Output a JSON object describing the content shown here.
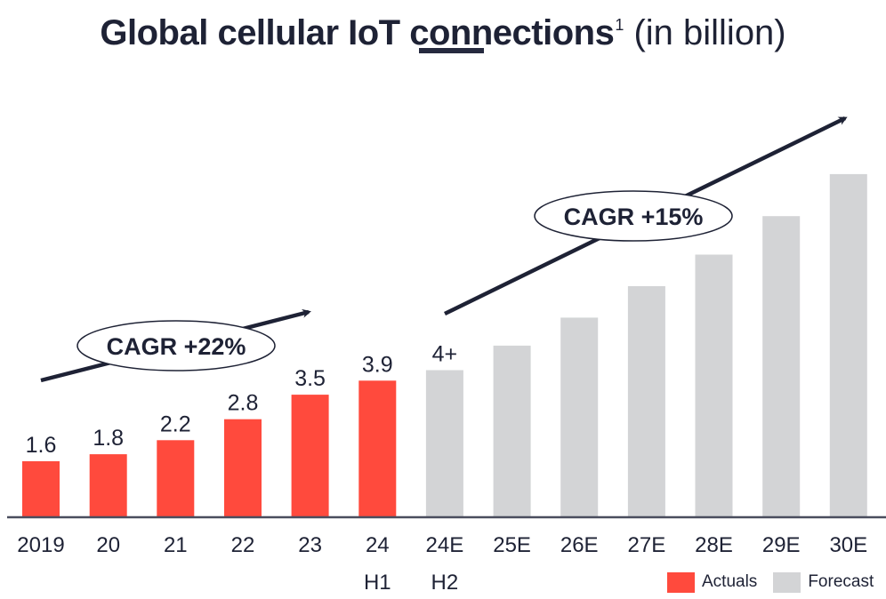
{
  "title": {
    "bold": "Global cellular IoT connections",
    "footnote": "1",
    "light": "(in billion)"
  },
  "colors": {
    "actual": "#ff4a3d",
    "forecast": "#d3d4d6",
    "text": "#1e2235",
    "axis": "#4a4d5e"
  },
  "legend": [
    {
      "label": "Actuals",
      "color": "#ff4a3d"
    },
    {
      "label": "Forecast",
      "color": "#d3d4d6"
    }
  ],
  "annotations": [
    {
      "label": "CAGR +22%",
      "period": "2019 to 24 H1"
    },
    {
      "label": "CAGR +15%",
      "period": "24E H2 to 30E"
    }
  ],
  "chart_data": {
    "type": "bar",
    "title": "Global cellular IoT connections (in billion)",
    "xlabel": "",
    "ylabel": "",
    "ylim": [
      0,
      10.5
    ],
    "grid": false,
    "legend_position": "bottom-right",
    "categories": [
      "2019",
      "20",
      "21",
      "22",
      "23",
      "24",
      "24E",
      "25E",
      "26E",
      "27E",
      "28E",
      "29E",
      "30E"
    ],
    "sublabels": [
      "",
      "",
      "",
      "",
      "",
      "H1",
      "H2",
      "",
      "",
      "",
      "",
      "",
      ""
    ],
    "series": [
      {
        "name": "Actuals",
        "values": [
          1.6,
          1.8,
          2.2,
          2.8,
          3.5,
          3.9,
          null,
          null,
          null,
          null,
          null,
          null,
          null
        ],
        "labels": [
          "1.6",
          "1.8",
          "2.2",
          "2.8",
          "3.5",
          "3.9",
          "",
          "",
          "",
          "",
          "",
          "",
          ""
        ]
      },
      {
        "name": "Forecast",
        "values": [
          null,
          null,
          null,
          null,
          null,
          null,
          4.2,
          4.9,
          5.7,
          6.6,
          7.5,
          8.6,
          9.8
        ],
        "labels": [
          "",
          "",
          "",
          "",
          "",
          "",
          "4+",
          "",
          "",
          "",
          "",
          "",
          ""
        ]
      }
    ],
    "annotations": [
      "CAGR +22%",
      "CAGR +15%"
    ]
  }
}
